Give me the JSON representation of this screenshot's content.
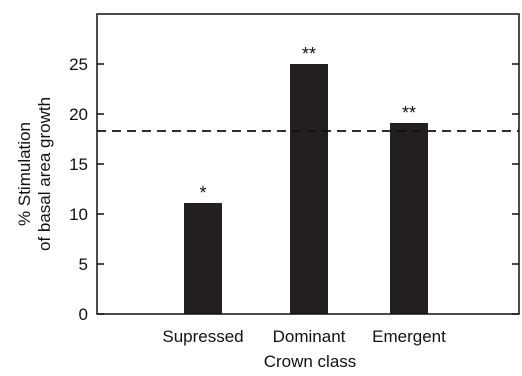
{
  "chart_data": {
    "type": "bar",
    "categories": [
      "Supressed",
      "Dominant",
      "Emergent"
    ],
    "values": [
      11.1,
      25.0,
      19.1
    ],
    "annotations": [
      "*",
      "**",
      "**"
    ],
    "reference_line": {
      "value": 18.3,
      "style": "dashed"
    },
    "xlabel": "Crown class",
    "ylabel_lines": [
      "% Stimulation",
      "of basal area growth"
    ],
    "ylim": [
      0,
      30
    ],
    "yticks": [
      "0",
      "5",
      "10",
      "15",
      "20",
      "25"
    ],
    "grid": false,
    "bar_color": "#231f20",
    "axis_color": "#111111"
  }
}
